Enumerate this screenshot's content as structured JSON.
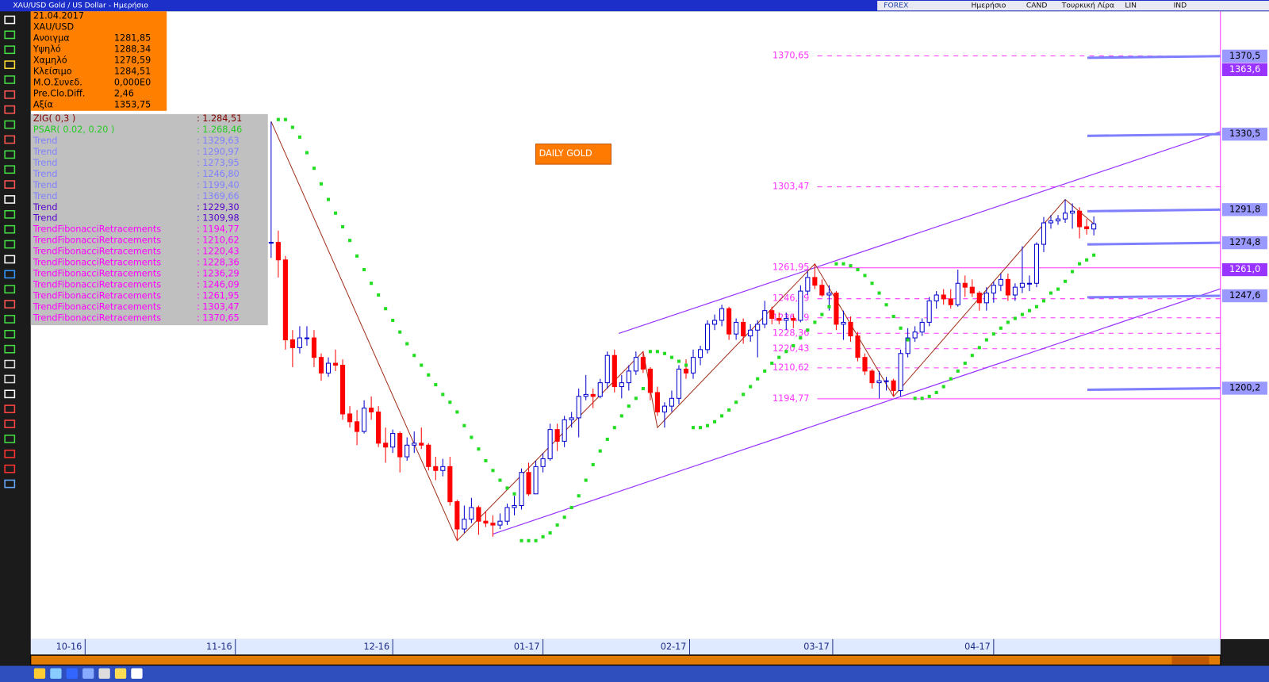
{
  "window": {
    "title": "XAU/USD Gold / US Dollar - Ημερήσιο",
    "toolbar": [
      "FOREX",
      "Ημερήσιο",
      "CAND",
      "Τουρκική Λίρα",
      "LIN",
      "IND"
    ]
  },
  "info_panel": {
    "date": "21.04.2017",
    "symbol": "XAU/USD",
    "rows": [
      [
        "Ανοιγμα",
        "1281,85"
      ],
      [
        "Υψηλό",
        "1288,34"
      ],
      [
        "Χαμηλό",
        "1278,59"
      ],
      [
        "Κλείσιμο",
        "1284,51"
      ],
      [
        "Μ.Ο.Συνεδ.",
        "0,000E0"
      ],
      [
        "Pre.Clo.Diff.",
        "2,46"
      ],
      [
        "Αξία",
        "1353,75"
      ]
    ]
  },
  "indicators": [
    {
      "name": "ZIG( 0,3 )",
      "value": ": 1.284,51",
      "color": "#800000"
    },
    {
      "name": "PSAR( 0.02, 0.20 )",
      "value": ": 1.268,46",
      "color": "#22cc22"
    },
    {
      "name": "Trend",
      "value": ": 1329,63",
      "color": "#8080ff"
    },
    {
      "name": "Trend",
      "value": ": 1290,97",
      "color": "#8080ff"
    },
    {
      "name": "Trend",
      "value": ": 1273,95",
      "color": "#8080ff"
    },
    {
      "name": "Trend",
      "value": ": 1246,80",
      "color": "#8080ff"
    },
    {
      "name": "Trend",
      "value": ": 1199,40",
      "color": "#8080ff"
    },
    {
      "name": "Trend",
      "value": ": 1369,66",
      "color": "#8080ff"
    },
    {
      "name": "Trend",
      "value": ": 1229,30",
      "color": "#5500cc"
    },
    {
      "name": "Trend",
      "value": ": 1309,98",
      "color": "#5500cc"
    },
    {
      "name": "TrendFibonacciRetracements",
      "value": ": 1194,77",
      "color": "#ff00ff"
    },
    {
      "name": "TrendFibonacciRetracements",
      "value": ": 1210,62",
      "color": "#ff00ff"
    },
    {
      "name": "TrendFibonacciRetracements",
      "value": ": 1220,43",
      "color": "#ff00ff"
    },
    {
      "name": "TrendFibonacciRetracements",
      "value": ": 1228,36",
      "color": "#ff00ff"
    },
    {
      "name": "TrendFibonacciRetracements",
      "value": ": 1236,29",
      "color": "#ff00ff"
    },
    {
      "name": "TrendFibonacciRetracements",
      "value": ": 1246,09",
      "color": "#ff00ff"
    },
    {
      "name": "TrendFibonacciRetracements",
      "value": ": 1261,95",
      "color": "#ff00ff"
    },
    {
      "name": "TrendFibonacciRetracements",
      "value": ": 1303,47",
      "color": "#ff00ff"
    },
    {
      "name": "TrendFibonacciRetracements",
      "value": ": 1370,65",
      "color": "#ff00ff"
    }
  ],
  "chart_data": {
    "type": "candlestick",
    "annotation": "DAILY GOLD",
    "xlim": [
      -33.6,
      132.7
    ],
    "ylim": [
      1071.5,
      1393.5
    ],
    "xticks": [
      {
        "value": -26,
        "label": "10-16"
      },
      {
        "value": -5,
        "label": "11-16"
      },
      {
        "value": 17,
        "label": "12-16"
      },
      {
        "value": 38,
        "label": "01-17"
      },
      {
        "value": 58.5,
        "label": "02-17"
      },
      {
        "value": 78.5,
        "label": "03-17"
      },
      {
        "value": 101,
        "label": "04-17"
      }
    ],
    "up_color": "#0000cc",
    "down_color": "#ff0000",
    "x": [
      0,
      1,
      2,
      3,
      4,
      5,
      6,
      7,
      8,
      9,
      10,
      11,
      12,
      13,
      14,
      15,
      16,
      17,
      18,
      19,
      20,
      21,
      22,
      23,
      24,
      25,
      26,
      27,
      28,
      29,
      30,
      31,
      32,
      33,
      34,
      35,
      36,
      37,
      38,
      39,
      40,
      41,
      42,
      43,
      44,
      45,
      46,
      47,
      48,
      49,
      50,
      51,
      52,
      53,
      54,
      55,
      56,
      57,
      58,
      59,
      60,
      61,
      62,
      63,
      64,
      65,
      66,
      67,
      68,
      69,
      70,
      71,
      72,
      73,
      74,
      75,
      76,
      77,
      78,
      79,
      80,
      81,
      82,
      83,
      84,
      85,
      86,
      87,
      88,
      89,
      90,
      91,
      92,
      93,
      94,
      95,
      96,
      97,
      98,
      99,
      100,
      101,
      102,
      103,
      104,
      105,
      106,
      107,
      108,
      109,
      110,
      111,
      112,
      113,
      114,
      115
    ],
    "open": [
      1275,
      1275,
      1266,
      1225,
      1221,
      1226,
      1226,
      1216,
      1208,
      1213,
      1212,
      1187,
      1183,
      1178,
      1190,
      1188,
      1172,
      1170,
      1177,
      1165,
      1171,
      1172,
      1171,
      1160,
      1158,
      1160,
      1142,
      1128,
      1133,
      1139,
      1132,
      1131,
      1130,
      1132,
      1139,
      1140,
      1157,
      1146,
      1160,
      1164,
      1179,
      1173,
      1184,
      1185,
      1196,
      1197,
      1196,
      1203,
      1217,
      1201,
      1203,
      1209,
      1216,
      1210,
      1198,
      1188,
      1191,
      1195,
      1210,
      1208,
      1216,
      1220,
      1233,
      1235,
      1241,
      1228,
      1234,
      1227,
      1230,
      1233,
      1240,
      1236,
      1235,
      1236,
      1235,
      1250,
      1257,
      1253,
      1248,
      1249,
      1233,
      1234,
      1227,
      1216,
      1209,
      1203,
      1204,
      1204,
      1199,
      1218,
      1226,
      1229,
      1234,
      1245,
      1248,
      1246,
      1243,
      1254,
      1252,
      1249,
      1244,
      1249,
      1253,
      1256,
      1248,
      1252,
      1254,
      1254,
      1274,
      1285,
      1286,
      1287,
      1290,
      1291,
      1283,
      1281.85
    ],
    "high": [
      1337,
      1281,
      1268,
      1230,
      1232,
      1232,
      1230,
      1218,
      1216,
      1220,
      1215,
      1191,
      1189,
      1194,
      1196,
      1191,
      1180,
      1179,
      1178,
      1175,
      1178,
      1180,
      1172,
      1165,
      1164,
      1165,
      1143,
      1140,
      1144,
      1140,
      1137,
      1135,
      1136,
      1141,
      1145,
      1159,
      1162,
      1163,
      1167,
      1182,
      1182,
      1186,
      1188,
      1200,
      1207,
      1200,
      1205,
      1219,
      1220,
      1207,
      1212,
      1219,
      1219,
      1211,
      1201,
      1193,
      1199,
      1212,
      1215,
      1220,
      1222,
      1235,
      1238,
      1243,
      1242,
      1236,
      1236,
      1233,
      1235,
      1245,
      1242,
      1239,
      1239,
      1238,
      1253,
      1260,
      1264,
      1256,
      1253,
      1250,
      1240,
      1237,
      1229,
      1218,
      1210,
      1209,
      1206,
      1205,
      1220,
      1231,
      1232,
      1236,
      1247,
      1250,
      1251,
      1251,
      1261,
      1258,
      1256,
      1250,
      1252,
      1255,
      1259,
      1259,
      1254,
      1273,
      1258,
      1275,
      1288,
      1289,
      1289,
      1297,
      1295,
      1293,
      1287,
      1288.34
    ],
    "low": [
      1267,
      1257,
      1220,
      1211,
      1218,
      1222,
      1211,
      1204,
      1206,
      1209,
      1184,
      1180,
      1171,
      1177,
      1184,
      1170,
      1162,
      1167,
      1157,
      1163,
      1167,
      1169,
      1158,
      1153,
      1155,
      1140,
      1122,
      1126,
      1131,
      1125,
      1129,
      1124,
      1128,
      1130,
      1135,
      1138,
      1145,
      1146,
      1157,
      1163,
      1168,
      1170,
      1180,
      1175,
      1194,
      1190,
      1195,
      1200,
      1198,
      1195,
      1199,
      1207,
      1208,
      1194,
      1186,
      1180,
      1188,
      1192,
      1205,
      1205,
      1212,
      1218,
      1230,
      1232,
      1225,
      1225,
      1223,
      1224,
      1216,
      1231,
      1233,
      1233,
      1230,
      1231,
      1234,
      1248,
      1251,
      1247,
      1240,
      1230,
      1225,
      1224,
      1214,
      1207,
      1200,
      1195,
      1199,
      1196,
      1196,
      1216,
      1224,
      1227,
      1232,
      1241,
      1243,
      1241,
      1242,
      1247,
      1247,
      1240,
      1240,
      1244,
      1250,
      1245,
      1245,
      1249,
      1250,
      1252,
      1270,
      1282,
      1284,
      1285,
      1282,
      1277,
      1279,
      1278.59
    ],
    "close": [
      1275,
      1266,
      1225,
      1221,
      1226,
      1226,
      1216,
      1208,
      1213,
      1212,
      1187,
      1183,
      1178,
      1190,
      1188,
      1172,
      1170,
      1177,
      1165,
      1171,
      1172,
      1171,
      1160,
      1158,
      1160,
      1142,
      1128,
      1133,
      1139,
      1132,
      1131,
      1130,
      1132,
      1139,
      1140,
      1157,
      1146,
      1160,
      1164,
      1179,
      1173,
      1184,
      1185,
      1196,
      1197,
      1196,
      1203,
      1217,
      1201,
      1203,
      1209,
      1216,
      1210,
      1198,
      1188,
      1191,
      1195,
      1210,
      1208,
      1216,
      1220,
      1233,
      1235,
      1241,
      1228,
      1234,
      1227,
      1230,
      1233,
      1240,
      1236,
      1235,
      1236,
      1235,
      1250,
      1257,
      1253,
      1248,
      1249,
      1233,
      1234,
      1227,
      1216,
      1209,
      1203,
      1204,
      1204,
      1199,
      1218,
      1226,
      1229,
      1234,
      1245,
      1248,
      1246,
      1243,
      1254,
      1252,
      1249,
      1244,
      1249,
      1253,
      1256,
      1248,
      1252,
      1254,
      1254,
      1274,
      1285,
      1286,
      1287,
      1290,
      1291,
      1283,
      1282,
      1284.51
    ],
    "psar": {
      "color": "#22dd22",
      "values": [
        null,
        1338,
        1338,
        1334,
        1329,
        1321,
        1313,
        1305,
        1297,
        1290,
        1283,
        1276,
        1268,
        1261,
        1254,
        1248,
        1241,
        1235,
        1229,
        1223,
        1217,
        1212,
        1207,
        1202,
        1197,
        1193,
        1188,
        1181,
        1175,
        1169,
        1163,
        1158,
        1153,
        1149,
        1146,
        1122,
        1122,
        1122,
        1124,
        1126,
        1130,
        1134,
        1139,
        1145,
        1153,
        1161,
        1168,
        1174,
        1180,
        1186,
        1191,
        1195,
        1200,
        1219,
        1219,
        1218,
        1216,
        1214,
        1212,
        1180,
        1180,
        1181,
        1183,
        1186,
        1189,
        1193,
        1197,
        1201,
        1205,
        1209,
        1213,
        1216,
        1219,
        1222,
        1226,
        1230,
        1234,
        1238,
        1242,
        1264,
        1264,
        1263,
        1261,
        1258,
        1254,
        1249,
        1243,
        1237,
        1231,
        1225,
        1195,
        1195,
        1196,
        1198,
        1201,
        1205,
        1209,
        1213,
        1217,
        1221,
        1225,
        1228,
        1231,
        1234,
        1236,
        1238,
        1240,
        1242,
        1245,
        1249,
        1251,
        1255,
        1260,
        1264,
        1266,
        1268.46
      ]
    },
    "zigzag": {
      "color": "#a0301a",
      "x": [
        0,
        26,
        52,
        54,
        76,
        87,
        111,
        115
      ],
      "values": [
        1337,
        1122,
        1219,
        1180,
        1264,
        1196,
        1297,
        1284.51
      ]
    },
    "channel": {
      "color": "#9933ff",
      "lines": [
        {
          "x": [
            31,
            115
          ],
          "values": [
            1125.4,
            1229.3
          ]
        },
        {
          "x": [
            48.6,
            115
          ],
          "values": [
            1228.3,
            1309.98
          ]
        }
      ]
    },
    "fib_levels": {
      "color": "#ff33ff",
      "levels": [
        {
          "value": 1370.65,
          "label": "1370,65",
          "dashed": true
        },
        {
          "value": 1303.47,
          "label": "1303,47",
          "dashed": true
        },
        {
          "value": 1261.95,
          "label": "1261,95",
          "dashed": false
        },
        {
          "value": 1246.09,
          "label": "1246,09",
          "dashed": true
        },
        {
          "value": 1236.29,
          "label": "1236,29",
          "dashed": true
        },
        {
          "value": 1228.36,
          "label": "1228,36",
          "dashed": true
        },
        {
          "value": 1220.43,
          "label": "1220,43",
          "dashed": true
        },
        {
          "value": 1210.62,
          "label": "1210,62",
          "dashed": true
        },
        {
          "value": 1194.77,
          "label": "1194,77",
          "dashed": false
        }
      ]
    },
    "right_levels": [
      {
        "value": 1370.5,
        "label": "1370,5",
        "color": "#9999ff",
        "start": 1369.66
      },
      {
        "value": 1363.6,
        "label": "1363,6",
        "color": "#9933ff"
      },
      {
        "value": 1330.5,
        "label": "1330,5",
        "color": "#9999ff",
        "start": 1329.63
      },
      {
        "value": 1291.8,
        "label": "1291,8",
        "color": "#9999ff",
        "start": 1290.97
      },
      {
        "value": 1274.8,
        "label": "1274,8",
        "color": "#9999ff",
        "start": 1273.95
      },
      {
        "value": 1261.0,
        "label": "1261,0",
        "color": "#9933ff"
      },
      {
        "value": 1247.6,
        "label": "1247,6",
        "color": "#9999ff",
        "start": 1246.8
      },
      {
        "value": 1200.2,
        "label": "1200,2",
        "color": "#9999ff",
        "start": 1199.4
      }
    ]
  }
}
